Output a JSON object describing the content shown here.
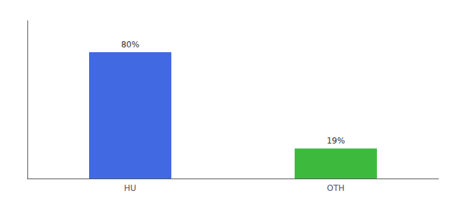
{
  "chart_data": {
    "type": "bar",
    "categories": [
      "HU",
      "OTH"
    ],
    "values": [
      80,
      19
    ],
    "value_labels": [
      "80%",
      "19%"
    ],
    "data_labels": true,
    "colors": [
      "#4169e1",
      "#3dba3d"
    ],
    "ylim": [
      0,
      100
    ],
    "tick_labels": "x",
    "grid": false
  }
}
